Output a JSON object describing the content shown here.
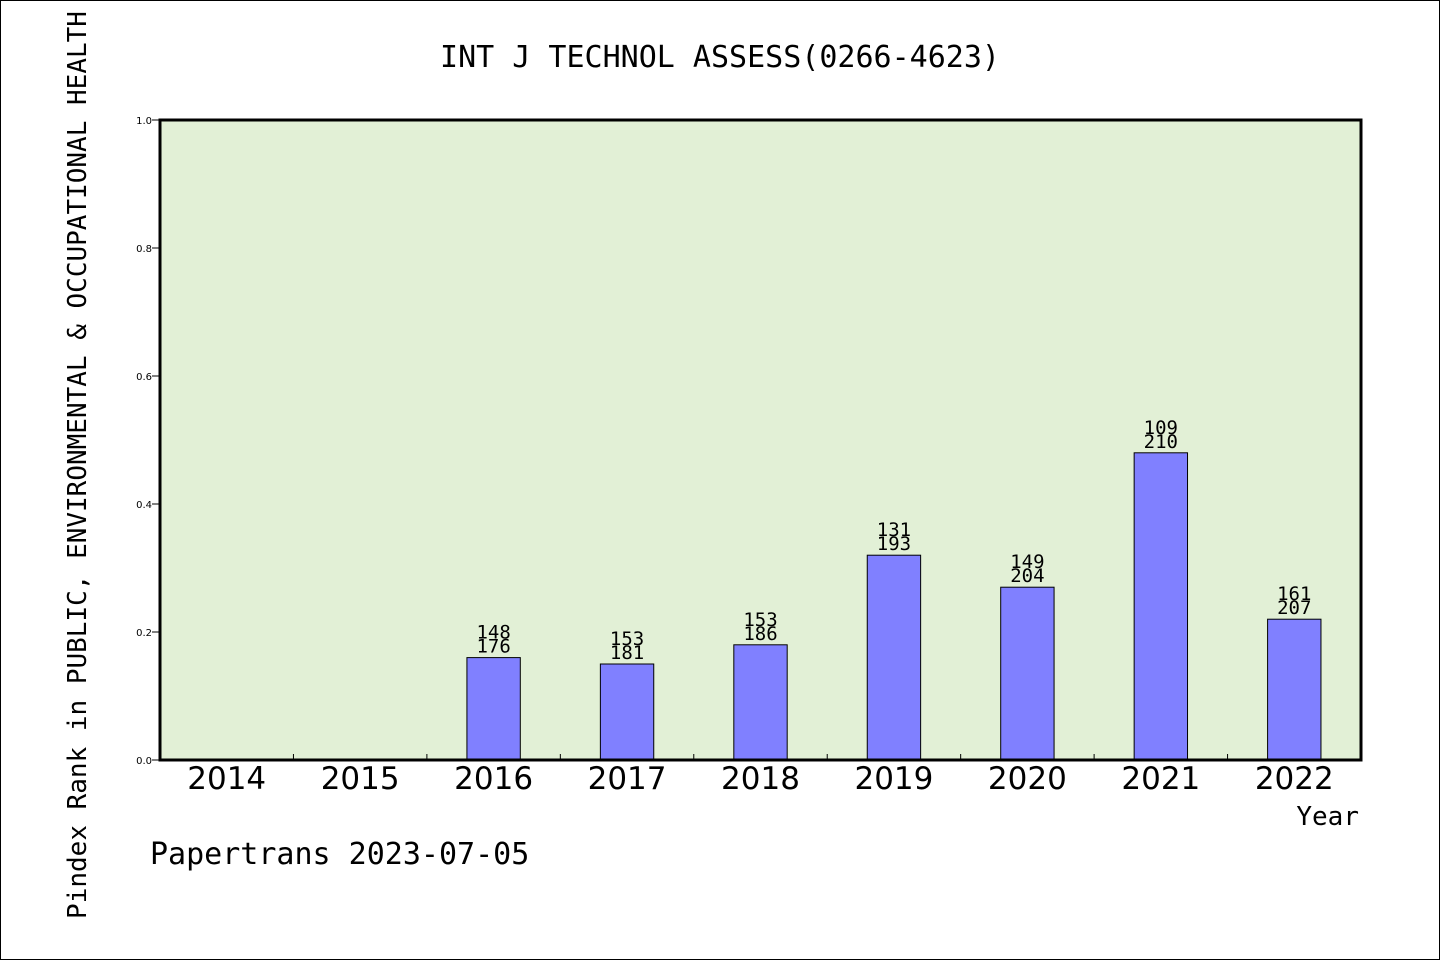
{
  "chart_data": {
    "type": "bar",
    "title": "INT J TECHNOL ASSESS(0266-4623)",
    "xlabel": "Year",
    "ylabel": "Pindex Rank in PUBLIC, ENVIRONMENTAL & OCCUPATIONAL HEALTH",
    "footer": "Papertrans 2023-07-05",
    "ylim": [
      0,
      1
    ],
    "yticks": [
      "0.0",
      "0.2",
      "0.4",
      "0.6",
      "0.8",
      "1.0"
    ],
    "categories": [
      "2014",
      "2015",
      "2016",
      "2017",
      "2018",
      "2019",
      "2020",
      "2021",
      "2022"
    ],
    "values": [
      null,
      null,
      0.16,
      0.15,
      0.18,
      0.32,
      0.27,
      0.48,
      0.22
    ],
    "rank_labels": [
      "",
      "",
      "148",
      "153",
      "153",
      "131",
      "149",
      "109",
      "161"
    ],
    "total_labels": [
      "",
      "",
      "176",
      "181",
      "186",
      "193",
      "204",
      "210",
      "207"
    ],
    "grid": false,
    "colors": {
      "plot_bg": "#e2f0d6",
      "bar": "#8080ff"
    }
  }
}
